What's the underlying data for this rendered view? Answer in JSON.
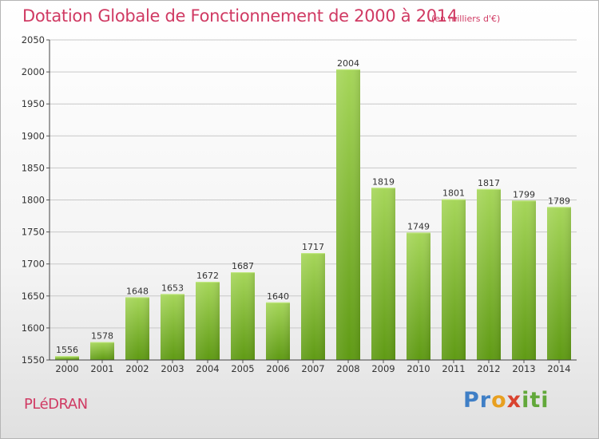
{
  "title": "Dotation Globale de Fonctionnement de 2000 à 2014",
  "subtitle": "(en milliers d'€)",
  "commune": "PLéDRAN",
  "logo": {
    "part1": "Pr",
    "part2": "o",
    "part3": "x",
    "part4": "iti"
  },
  "colors": {
    "title": "#d03a63",
    "bar_top": "#a6d65a",
    "bar_bottom": "#5f9a14",
    "grid": "#c8c8c8"
  },
  "chart_data": {
    "type": "bar",
    "categories": [
      "2000",
      "2001",
      "2002",
      "2003",
      "2004",
      "2005",
      "2006",
      "2007",
      "2008",
      "2009",
      "2010",
      "2011",
      "2012",
      "2013",
      "2014"
    ],
    "values": [
      1556,
      1578,
      1648,
      1653,
      1672,
      1687,
      1640,
      1717,
      2004,
      1819,
      1749,
      1801,
      1817,
      1799,
      1789
    ],
    "ylim": [
      1550,
      2050
    ],
    "yticks": [
      1550,
      1600,
      1650,
      1700,
      1750,
      1800,
      1850,
      1900,
      1950,
      2000,
      2050
    ],
    "grid": true,
    "legend": "none"
  }
}
